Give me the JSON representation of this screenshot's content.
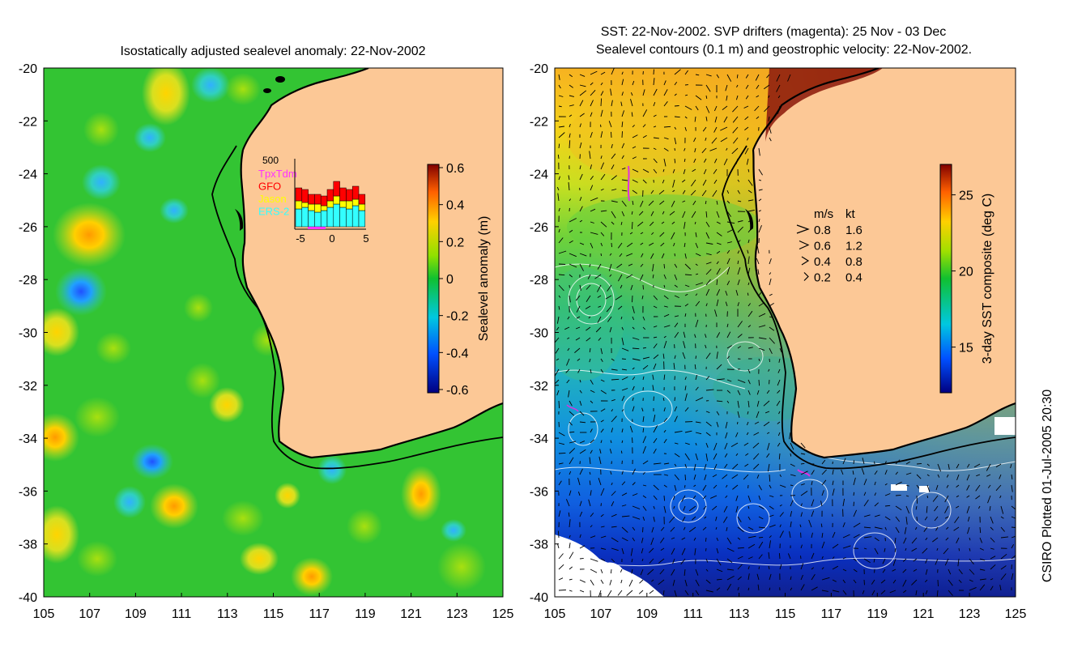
{
  "left_panel": {
    "title": "Isostatically adjusted sealevel anomaly: 22-Nov-2002",
    "lat_ticks": [
      "-20",
      "-22",
      "-24",
      "-26",
      "-28",
      "-30",
      "-32",
      "-34",
      "-36",
      "-38",
      "-40"
    ],
    "lon_ticks": [
      "105",
      "107",
      "109",
      "111",
      "113",
      "115",
      "117",
      "119",
      "121",
      "123",
      "125"
    ],
    "colorbar": {
      "label": "Sealevel anomaly (m)",
      "ticks": [
        "0.6",
        "0.4",
        "0.2",
        "0",
        "-0.2",
        "-0.4",
        "-0.6"
      ],
      "range": [
        -0.6,
        0.6
      ]
    },
    "inset": {
      "ymax_label": "500",
      "legend": [
        {
          "label": "TpxTdm",
          "color": "#ff33ff"
        },
        {
          "label": "GFO",
          "color": "#ff0000"
        },
        {
          "label": "Jason",
          "color": "#ffff00"
        },
        {
          "label": "ERS-2",
          "color": "#33ffff"
        }
      ],
      "x_ticks": [
        "-5",
        "0",
        "5"
      ]
    }
  },
  "right_panel": {
    "title_line1": "SST: 22-Nov-2002. SVP drifters (magenta): 25 Nov - 03 Dec",
    "title_line2": "Sealevel contours (0.1 m) and geostrophic velocity: 22-Nov-2002.",
    "lat_ticks": [
      "-20",
      "-22",
      "-24",
      "-26",
      "-28",
      "-30",
      "-32",
      "-34",
      "-36",
      "-38",
      "-40"
    ],
    "lon_ticks": [
      "105",
      "107",
      "109",
      "111",
      "113",
      "115",
      "117",
      "119",
      "121",
      "123",
      "125"
    ],
    "colorbar": {
      "label": "3-day SST composite (deg C)",
      "ticks": [
        "25",
        "20",
        "15"
      ],
      "range": [
        12,
        27
      ]
    },
    "velocity_legend": {
      "header_ms": "m/s",
      "header_kt": "kt",
      "rows": [
        {
          "ms": "0.8",
          "kt": "1.6"
        },
        {
          "ms": "0.6",
          "kt": "1.2"
        },
        {
          "ms": "0.4",
          "kt": "0.8"
        },
        {
          "ms": "0.2",
          "kt": "0.4"
        }
      ]
    }
  },
  "credit": "CSIRO Plotted 01-Jul-2005 20:30",
  "colors": {
    "land": "#fcc896",
    "coast": "#000000",
    "ssh_background": "#33c433",
    "sst_warm": "#f0c020",
    "sst_cool": "#1060e0"
  }
}
